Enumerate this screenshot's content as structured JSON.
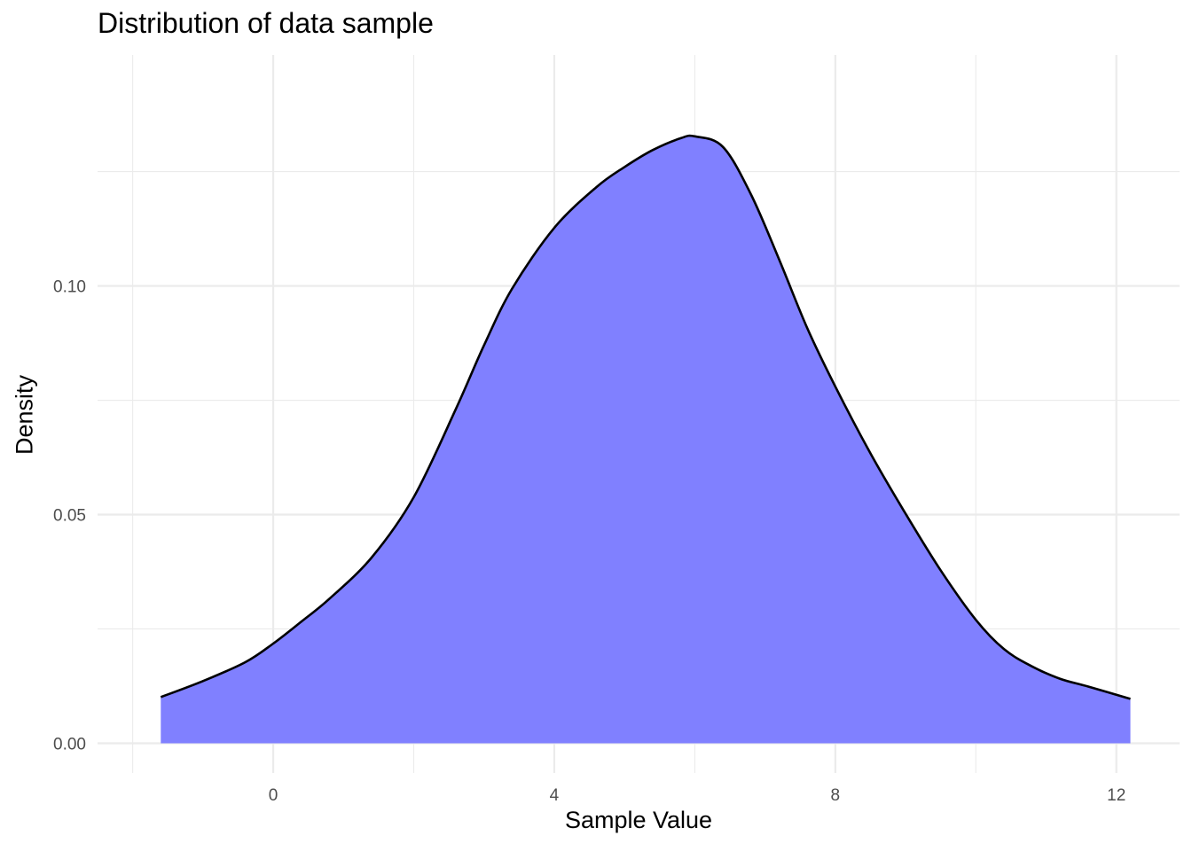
{
  "chart_data": {
    "type": "area",
    "title": "Distribution of data sample",
    "xlabel": "Sample Value",
    "ylabel": "Density",
    "xlim": [
      -2.5,
      12.9
    ],
    "ylim": [
      -0.0065,
      0.1505
    ],
    "x_ticks": [
      0,
      4,
      8,
      12
    ],
    "x_tick_labels": [
      "0",
      "4",
      "8",
      "12"
    ],
    "y_ticks": [
      0.0,
      0.05,
      0.1
    ],
    "y_tick_labels": [
      "0.00",
      "0.05",
      "0.10"
    ],
    "x_minor_ticks": [
      -2,
      2,
      6,
      10
    ],
    "y_minor_ticks": [
      0.025,
      0.075,
      0.125
    ],
    "grid": true,
    "legend": "none",
    "fill_color": "#8080ff",
    "line_color": "#000000",
    "series": [
      {
        "x": [
          -1.6,
          -1.0,
          -0.4,
          0.0,
          0.4,
          0.8,
          1.4,
          2.0,
          2.6,
          3.0,
          3.4,
          4.0,
          4.6,
          5.0,
          5.4,
          5.8,
          6.0,
          6.4,
          6.8,
          7.2,
          7.6,
          8.0,
          8.5,
          9.0,
          9.5,
          10.0,
          10.4,
          10.8,
          11.2,
          11.6,
          12.2
        ],
        "y": [
          0.0101,
          0.0136,
          0.0177,
          0.0218,
          0.0266,
          0.0316,
          0.0406,
          0.0538,
          0.0731,
          0.087,
          0.0994,
          0.1127,
          0.1216,
          0.126,
          0.1297,
          0.1323,
          0.1327,
          0.1304,
          0.12,
          0.1058,
          0.0908,
          0.078,
          0.0634,
          0.0502,
          0.0378,
          0.027,
          0.0206,
          0.0168,
          0.0141,
          0.0124,
          0.0097
        ]
      }
    ]
  }
}
